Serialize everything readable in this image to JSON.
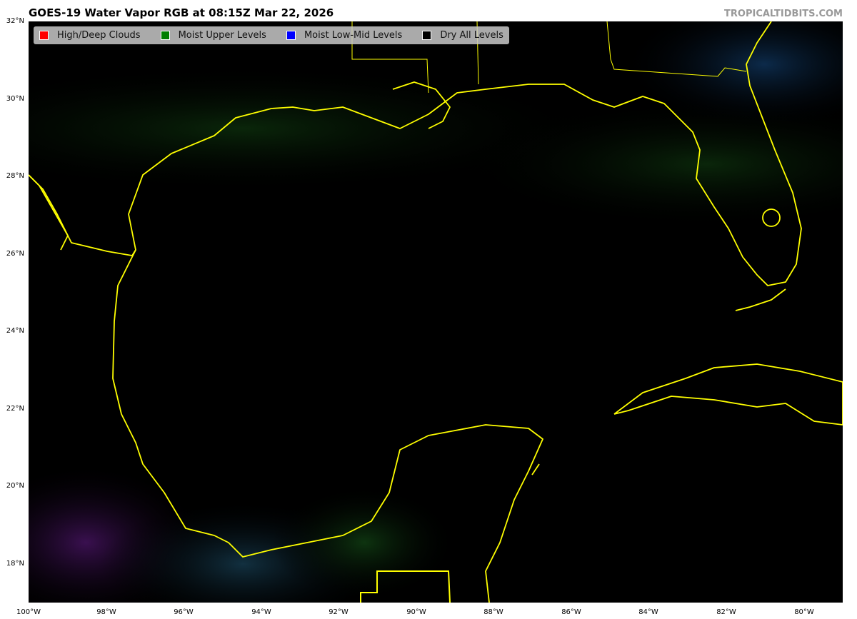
{
  "title": "GOES-19 Water Vapor RGB at 08:15Z Mar 22, 2026",
  "credit": "TROPICALTIDBITS.COM",
  "legend": [
    {
      "label": "High/Deep Clouds",
      "color": "#ff0000"
    },
    {
      "label": "Moist Upper Levels",
      "color": "#008000"
    },
    {
      "label": "Moist Low-Mid Levels",
      "color": "#0000ff"
    },
    {
      "label": "Dry All Levels",
      "color": "#000000"
    }
  ],
  "axes": {
    "lat_labels": [
      "32°N",
      "30°N",
      "28°N",
      "26°N",
      "24°N",
      "22°N",
      "20°N",
      "18°N"
    ],
    "lon_labels": [
      "100°W",
      "98°W",
      "96°W",
      "94°W",
      "92°W",
      "90°W",
      "88°W",
      "86°W",
      "84°W",
      "82°W",
      "80°W"
    ]
  },
  "colors": {
    "coastline": "#ffff00",
    "background": "#000000"
  }
}
